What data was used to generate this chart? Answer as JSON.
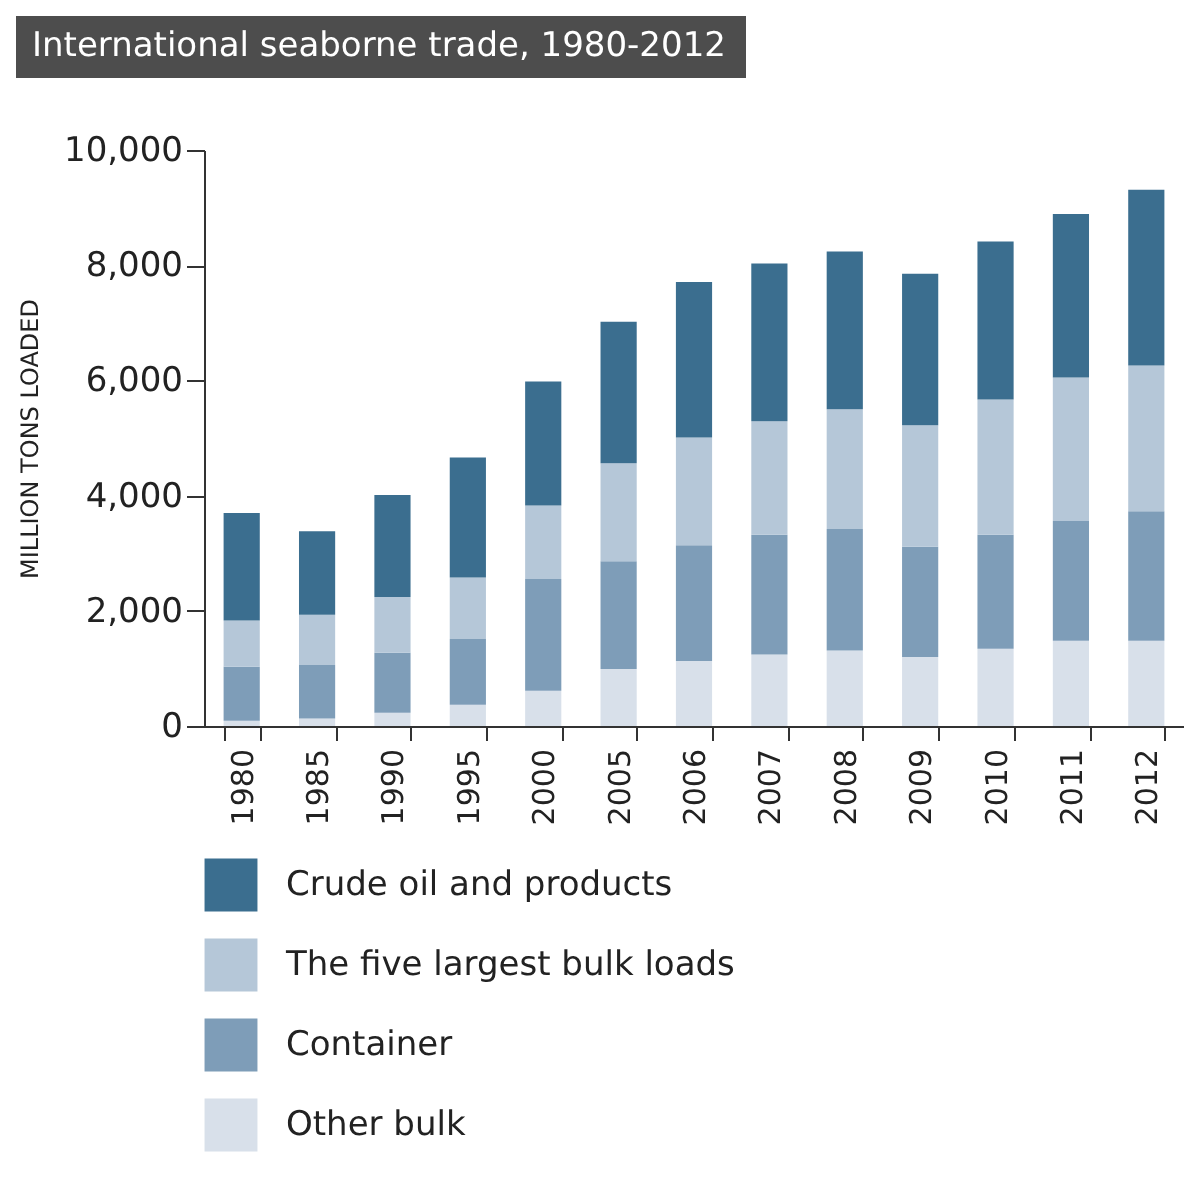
{
  "chart_data": {
    "type": "bar",
    "title": "International seaborne trade, 1980-2012",
    "ylabel": "MILLION TONS LOADED",
    "categories": [
      "1980",
      "1985",
      "1990",
      "1995",
      "2000",
      "2005",
      "2006",
      "2007",
      "2008",
      "2009",
      "2010",
      "2011",
      "2012"
    ],
    "stacked": true,
    "series": [
      {
        "name": "Other bulk",
        "color": "#d8e0ea",
        "values": [
          90,
          130,
          230,
          370,
          610,
          990,
          1130,
          1240,
          1310,
          1200,
          1340,
          1480,
          1480
        ]
      },
      {
        "name": "Container",
        "color": "#7e9db8",
        "values": [
          940,
          930,
          1040,
          1140,
          1940,
          1870,
          2010,
          2080,
          2110,
          1910,
          1980,
          2080,
          2250
        ]
      },
      {
        "name": "The five largest bulk loads",
        "color": "#b5c7d8",
        "values": [
          800,
          870,
          970,
          1070,
          1280,
          1700,
          1870,
          1970,
          2080,
          2110,
          2350,
          2490,
          2530
        ]
      },
      {
        "name": "Crude oil and products",
        "color": "#3b6e8f",
        "values": [
          1870,
          1450,
          1770,
          2080,
          2150,
          2460,
          2700,
          2740,
          2740,
          2630,
          2740,
          2840,
          3050
        ]
      }
    ],
    "ylim": [
      0,
      10000
    ],
    "yticks": [
      0,
      {
        "value": 2000,
        "label": "2,000"
      },
      {
        "value": 4000,
        "label": "4,000"
      },
      {
        "value": 6000,
        "label": "6,000"
      },
      {
        "value": 8000,
        "label": "8,000"
      },
      {
        "value": 10000,
        "label": "10,000"
      }
    ],
    "grid": false,
    "legend": "bottom"
  }
}
